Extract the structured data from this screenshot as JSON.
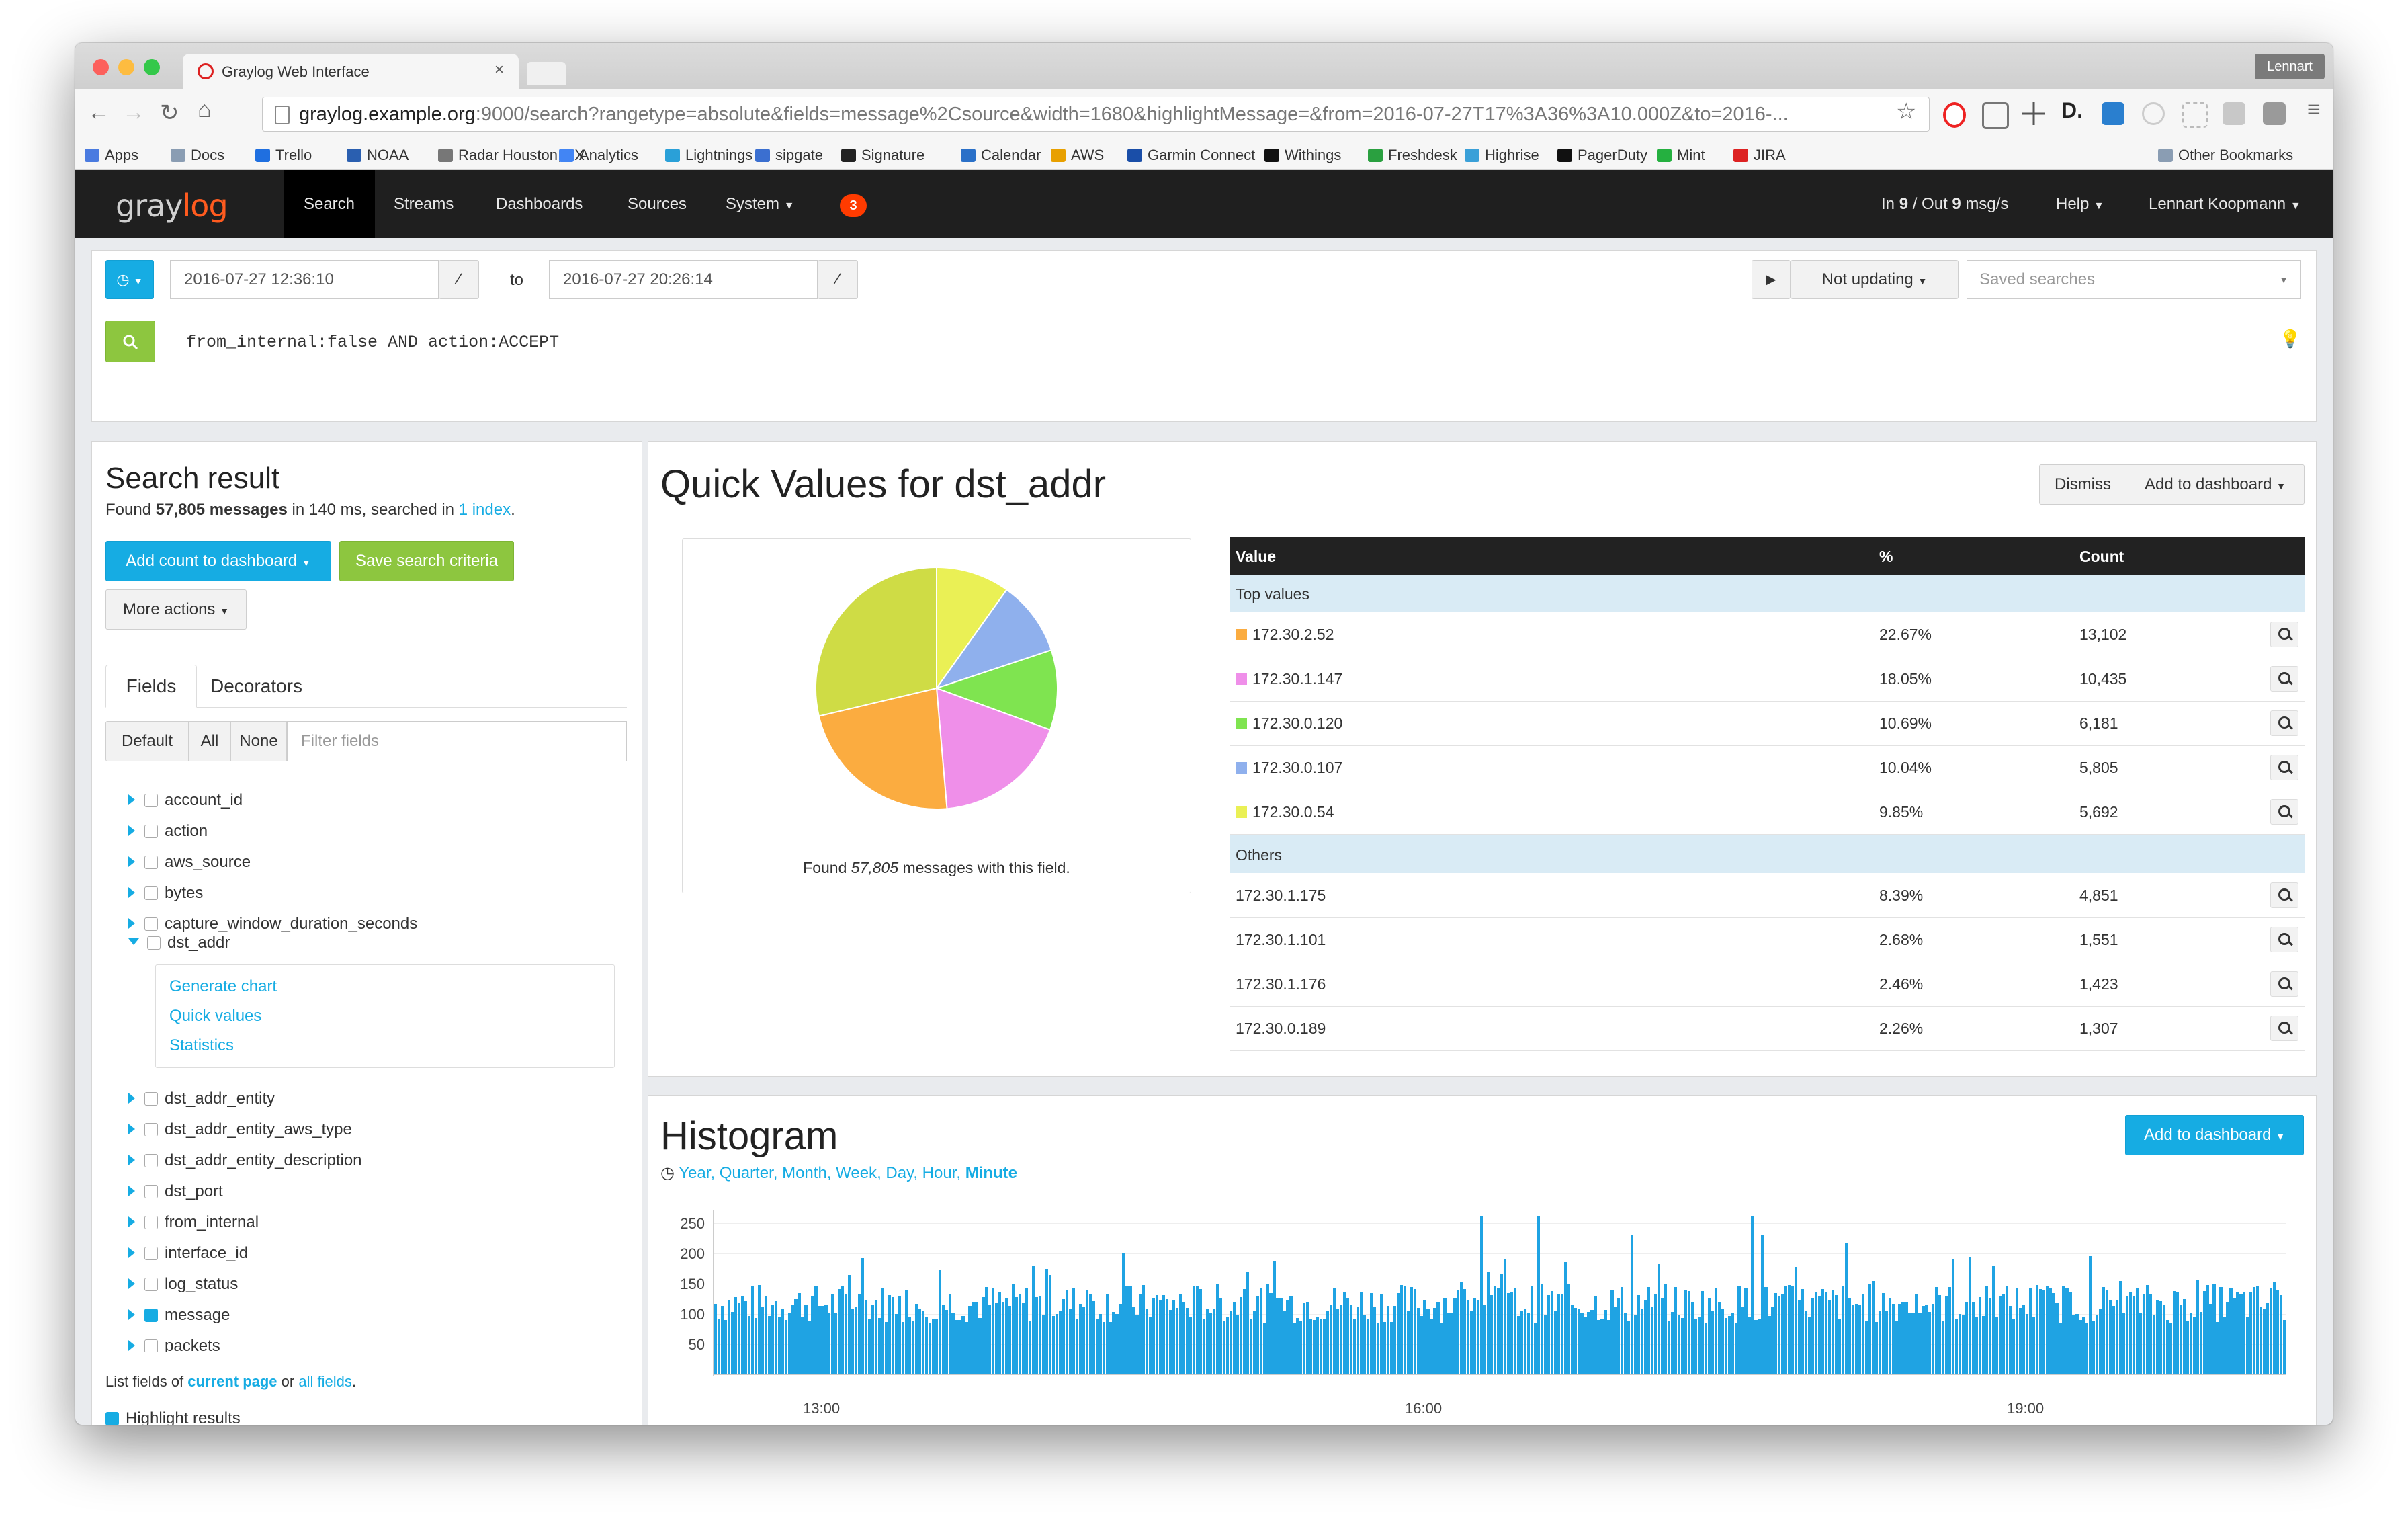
{
  "browser": {
    "tab_title": "Graylog Web Interface",
    "profile": "Lennart",
    "url_host": "graylog.example.org",
    "url_rest": ":9000/search?rangetype=absolute&fields=message%2Csource&width=1680&highlightMessage=&from=2016-07-27T17%3A36%3A10.000Z&to=2016-...",
    "bookmarks": [
      "Apps",
      "Docs",
      "Trello",
      "NOAA",
      "Radar Houston, TX",
      "Analytics",
      "Lightnings",
      "sipgate",
      "Signature",
      "Calendar",
      "AWS",
      "Garmin Connect",
      "Withings",
      "Freshdesk",
      "Highrise",
      "PagerDuty",
      "Mint",
      "JIRA"
    ],
    "other_bookmarks": "Other Bookmarks"
  },
  "navbar": {
    "logo_a": "gray",
    "logo_b": "log",
    "items": [
      "Search",
      "Streams",
      "Dashboards",
      "Sources",
      "System"
    ],
    "notification_count": "3",
    "throughput_prefix": "In ",
    "throughput_in": "9",
    "throughput_mid": " / Out ",
    "throughput_out": "9",
    "throughput_suffix": " msg/s",
    "help": "Help",
    "user": "Lennart Koopmann"
  },
  "search_bar": {
    "from": "2016-07-27 12:36:10",
    "to_label": "to",
    "to": "2016-07-27 20:26:14",
    "not_updating": "Not updating",
    "saved_searches_placeholder": "Saved searches",
    "query": "from_internal:false AND action:ACCEPT"
  },
  "sidebar": {
    "title": "Search result",
    "found_prefix": "Found ",
    "found_count": "57,805 messages",
    "found_mid": " in 140 ms, searched in ",
    "found_index": "1 index",
    "found_end": ".",
    "add_count_button": "Add count to dashboard",
    "save_search_button": "Save search criteria",
    "more_actions_button": "More actions",
    "tab_fields": "Fields",
    "tab_decorators": "Decorators",
    "btn_default": "Default",
    "btn_all": "All",
    "btn_none": "None",
    "filter_placeholder": "Filter fields",
    "fields_top": [
      "account_id",
      "action",
      "aws_source",
      "bytes",
      "capture_window_duration_seconds"
    ],
    "expanded_field": "dst_addr",
    "expanded_actions": [
      "Generate chart",
      "Quick values",
      "Statistics"
    ],
    "fields_bottom": [
      "dst_addr_entity",
      "dst_addr_entity_aws_type",
      "dst_addr_entity_description",
      "dst_port",
      "from_internal",
      "interface_id",
      "log_status",
      "message",
      "packets"
    ],
    "list_prefix": "List fields of ",
    "list_current": "current page",
    "list_mid": " or ",
    "list_all": "all fields",
    "list_end": ".",
    "highlight_label": "Highlight results"
  },
  "quick_values": {
    "title": "Quick Values for dst_addr",
    "dismiss": "Dismiss",
    "add_to_dashboard": "Add to dashboard",
    "found_prefix": "Found ",
    "found_count": "57,805",
    "found_suffix": " messages with this field.",
    "col_value": "Value",
    "col_percent": "%",
    "col_count": "Count",
    "group_top": "Top values",
    "group_others": "Others",
    "top": [
      {
        "value": "172.30.2.52",
        "percent": "22.67%",
        "count": "13,102",
        "color": "#fbac40"
      },
      {
        "value": "172.30.1.147",
        "percent": "18.05%",
        "count": "10,435",
        "color": "#ef8fe9"
      },
      {
        "value": "172.30.0.120",
        "percent": "10.69%",
        "count": "6,181",
        "color": "#7fe450"
      },
      {
        "value": "172.30.0.107",
        "percent": "10.04%",
        "count": "5,805",
        "color": "#8fb0ed"
      },
      {
        "value": "172.30.0.54",
        "percent": "9.85%",
        "count": "5,692",
        "color": "#eaf055"
      }
    ],
    "others": [
      {
        "value": "172.30.1.175",
        "percent": "8.39%",
        "count": "4,851"
      },
      {
        "value": "172.30.1.101",
        "percent": "2.68%",
        "count": "1,551"
      },
      {
        "value": "172.30.1.176",
        "percent": "2.46%",
        "count": "1,423"
      },
      {
        "value": "172.30.0.189",
        "percent": "2.26%",
        "count": "1,307"
      }
    ],
    "others_color": "#cfdc45"
  },
  "histogram": {
    "title": "Histogram",
    "add_to_dashboard": "Add to dashboard",
    "resolutions": [
      "Year",
      "Quarter",
      "Month",
      "Week",
      "Day",
      "Hour",
      "Minute"
    ],
    "active_resolution": "Minute"
  },
  "chart_data": [
    {
      "type": "pie",
      "labels": [
        "172.30.2.52",
        "172.30.1.147",
        "172.30.0.120",
        "172.30.0.107",
        "172.30.0.54",
        "Others"
      ],
      "values": [
        22.67,
        18.05,
        10.69,
        10.04,
        9.85,
        28.7
      ],
      "colors": [
        "#fbac40",
        "#ef8fe9",
        "#7fe450",
        "#8fb0ed",
        "#eaf055",
        "#cfdc45"
      ]
    },
    {
      "type": "bar",
      "y_ticks": [
        "250",
        "200",
        "150",
        "100",
        "50"
      ],
      "x_ticks": [
        "13:00",
        "16:00",
        "19:00"
      ],
      "ylim": [
        0,
        262
      ],
      "bar_count": 470,
      "typical_range": [
        85,
        150
      ],
      "peaks": [
        230,
        262
      ]
    }
  ]
}
